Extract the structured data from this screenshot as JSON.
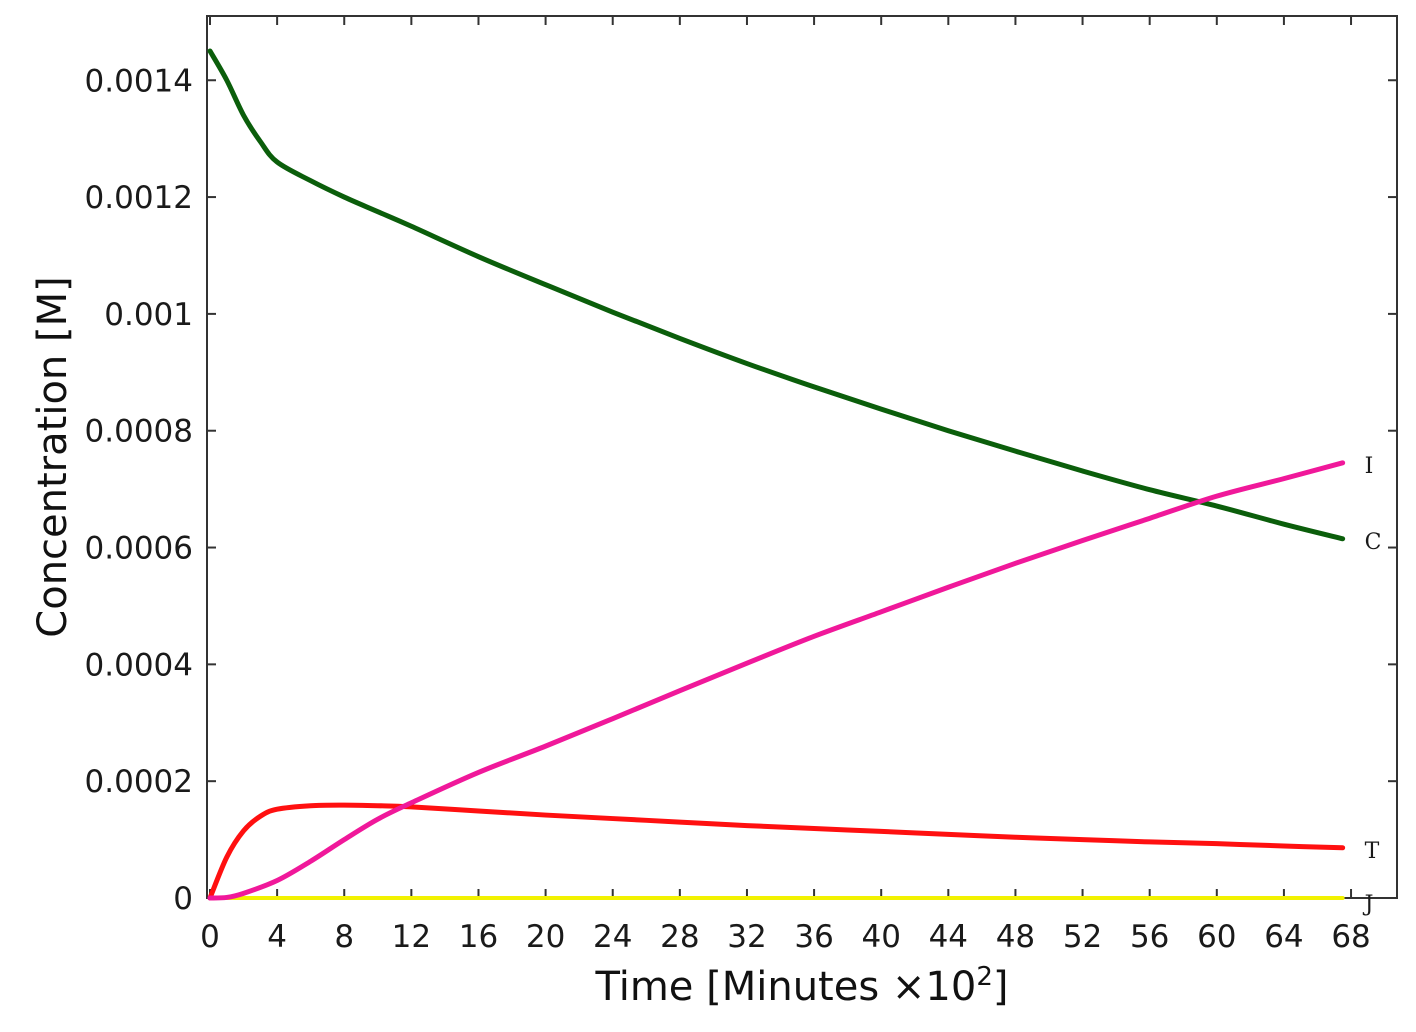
{
  "chart_data": {
    "type": "line",
    "title": "",
    "xlabel": "Time [Minutes ×10",
    "xlabel_superscript": "2",
    "xlabel_suffix": "]",
    "ylabel": "Concentration [M]",
    "xlim": [
      -0.3,
      70
    ],
    "ylim": [
      0,
      0.00151
    ],
    "x_ticks": [
      0,
      4,
      8,
      12,
      16,
      20,
      24,
      28,
      32,
      36,
      40,
      44,
      48,
      52,
      56,
      60,
      64,
      68
    ],
    "x_tick_labels": [
      "0",
      "4",
      "8",
      "12",
      "16",
      "20",
      "24",
      "28",
      "32",
      "36",
      "40",
      "44",
      "48",
      "52",
      "56",
      "60",
      "64",
      "68"
    ],
    "y_ticks": [
      0,
      0.0002,
      0.0004,
      0.0006,
      0.0008,
      0.001,
      0.0012,
      0.0014
    ],
    "y_tick_labels": [
      "0",
      "0.0002",
      "0.0004",
      "0.0006",
      "0.0008",
      "0.001",
      "0.0012",
      "0.0014"
    ],
    "grid": false,
    "legend": "inline labels at line ends",
    "series": [
      {
        "name": "C",
        "color": "#0b5e0b",
        "x": [
          0,
          1,
          2,
          3,
          4,
          6,
          8,
          10,
          12,
          16,
          20,
          24,
          28,
          32,
          36,
          40,
          44,
          48,
          52,
          56,
          60,
          64,
          67.5
        ],
        "y": [
          0.00145,
          0.0014,
          0.00134,
          0.001295,
          0.00126,
          0.001228,
          0.0012,
          0.001175,
          0.00115,
          0.001098,
          0.00105,
          0.001003,
          0.000958,
          0.000915,
          0.000875,
          0.000837,
          0.0008,
          0.000765,
          0.000731,
          0.000699,
          0.000671,
          0.00064,
          0.000615
        ]
      },
      {
        "name": "I",
        "color": "#f0189a",
        "x": [
          0,
          1,
          2,
          4,
          6,
          8,
          10,
          12,
          16,
          20,
          24,
          28,
          32,
          36,
          40,
          44,
          48,
          52,
          56,
          60,
          64,
          67.5
        ],
        "y": [
          0,
          1e-06,
          8e-06,
          3e-05,
          6.3e-05,
          0.0001,
          0.000135,
          0.000163,
          0.000215,
          0.00026,
          0.000307,
          0.000355,
          0.000402,
          0.000448,
          0.00049,
          0.000532,
          0.000573,
          0.000612,
          0.00065,
          0.000688,
          0.000718,
          0.000745
        ]
      },
      {
        "name": "T",
        "color": "#ff1010",
        "x": [
          0,
          1,
          2,
          3,
          4,
          6,
          8,
          10,
          12,
          16,
          20,
          24,
          28,
          32,
          36,
          40,
          44,
          48,
          52,
          56,
          60,
          64,
          67.5
        ],
        "y": [
          0,
          7e-05,
          0.000115,
          0.00014,
          0.000152,
          0.000158,
          0.000159,
          0.000158,
          0.000156,
          0.000149,
          0.000142,
          0.000136,
          0.00013,
          0.000124,
          0.000119,
          0.000114,
          0.000109,
          0.000104,
          0.0001,
          9.6e-05,
          9.3e-05,
          8.9e-05,
          8.6e-05
        ]
      },
      {
        "name": "J",
        "color": "#f2f200",
        "x": [
          0,
          67.5
        ],
        "y": [
          0,
          0
        ]
      }
    ]
  }
}
